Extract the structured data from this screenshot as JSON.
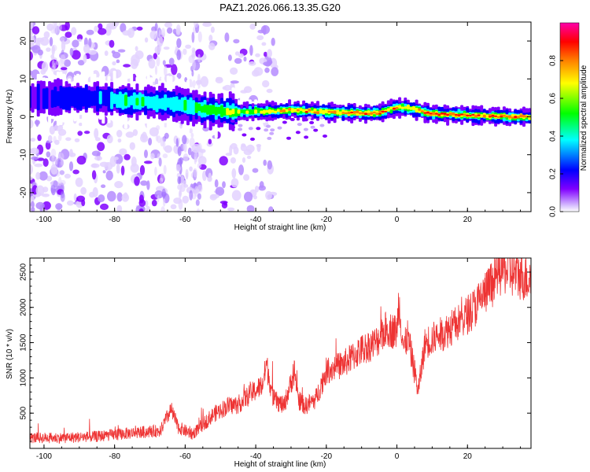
{
  "chart_data": [
    {
      "type": "heatmap",
      "title": "PAZ1.2026.066.13.35.G20",
      "xlabel": "Height of straight line (km)",
      "ylabel": "Frequency (Hz)",
      "xlim": [
        -104,
        38
      ],
      "ylim": [
        -25,
        25
      ],
      "xticks": [
        -100,
        -80,
        -60,
        -40,
        -20,
        0,
        20
      ],
      "yticks": [
        -20,
        -10,
        0,
        10,
        20
      ],
      "colorbar": {
        "label": "Normalized spectral amplitude",
        "range": [
          0,
          1
        ],
        "ticks": [
          0.0,
          0.2,
          0.4,
          0.6,
          0.8
        ],
        "tick_labels": [
          "0.0",
          "0.2",
          "0.4",
          "0.6",
          "0.8"
        ],
        "colors": [
          "#ffffff",
          "#e0c8ff",
          "#8000ff",
          "#0000ff",
          "#00ffff",
          "#00ff00",
          "#ffff00",
          "#ff8000",
          "#ff0000",
          "#ff00aa"
        ]
      },
      "ridge": {
        "x": [
          -100,
          -95,
          -90,
          -85,
          -80,
          -75,
          -70,
          -65,
          -60,
          -55,
          -50,
          -45,
          -40,
          -35,
          -30,
          -25,
          -20,
          -15,
          -10,
          -5,
          0,
          2,
          5,
          10,
          15,
          20,
          25,
          30,
          37
        ],
        "y": [
          5,
          5,
          5,
          5,
          4.5,
          4,
          4,
          3.5,
          3,
          2,
          1.5,
          1.2,
          1.5,
          1.5,
          1.8,
          1.5,
          1.2,
          1.2,
          1,
          1,
          2.5,
          2.5,
          2,
          0.8,
          0.6,
          0.5,
          0.2,
          0.1,
          0
        ],
        "peak": [
          0.25,
          0.3,
          0.3,
          0.35,
          0.45,
          0.55,
          0.5,
          0.45,
          0.5,
          0.6,
          0.65,
          0.7,
          0.65,
          0.75,
          0.75,
          0.8,
          0.8,
          0.85,
          0.9,
          0.9,
          0.85,
          0.8,
          0.8,
          0.95,
          0.95,
          0.9,
          0.9,
          0.9,
          0.85
        ]
      }
    },
    {
      "type": "line",
      "color": "#ee3333",
      "xlabel": "Height of straight line (km)",
      "ylabel": "SNR (10 * v/v)",
      "xlim": [
        -104,
        38
      ],
      "ylim": [
        0,
        2700
      ],
      "xticks": [
        -100,
        -80,
        -60,
        -40,
        -20,
        0,
        20
      ],
      "yticks": [
        500,
        1000,
        1500,
        2000,
        2500
      ],
      "series": [
        {
          "name": "SNR",
          "x": [
            -104,
            -95,
            -85,
            -75,
            -67,
            -64,
            -62,
            -58,
            -52,
            -48,
            -45,
            -42,
            -38,
            -37,
            -35,
            -32,
            -29,
            -28,
            -26,
            -23,
            -20,
            -15,
            -10,
            -6,
            -3,
            0,
            0.5,
            2,
            3,
            5,
            6,
            8,
            12,
            18,
            22,
            25,
            28,
            30,
            32,
            35,
            38
          ],
          "y": [
            150,
            150,
            170,
            220,
            250,
            550,
            300,
            200,
            480,
            600,
            620,
            750,
            900,
            1200,
            700,
            600,
            1100,
            700,
            600,
            700,
            1100,
            1200,
            1400,
            1500,
            1700,
            1650,
            2100,
            1400,
            1600,
            1100,
            800,
            1500,
            1600,
            1800,
            2000,
            2200,
            2400,
            2550,
            2500,
            2450,
            2400
          ]
        }
      ]
    }
  ]
}
